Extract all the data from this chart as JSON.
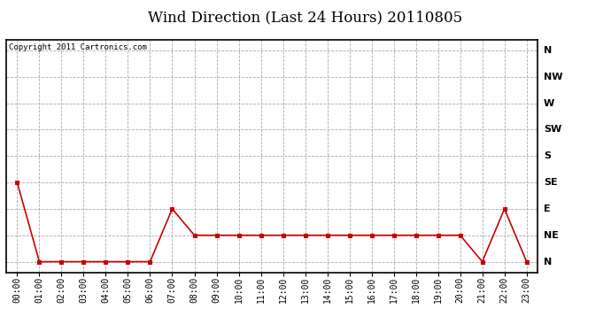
{
  "title": "Wind Direction (Last 24 Hours) 20110805",
  "copyright_text": "Copyright 2011 Cartronics.com",
  "x_labels": [
    "00:00",
    "01:00",
    "02:00",
    "03:00",
    "04:00",
    "05:00",
    "06:00",
    "07:00",
    "08:00",
    "09:00",
    "10:00",
    "11:00",
    "12:00",
    "13:00",
    "14:00",
    "15:00",
    "16:00",
    "17:00",
    "18:00",
    "19:00",
    "20:00",
    "21:00",
    "22:00",
    "23:00"
  ],
  "y_values": [
    3,
    0,
    0,
    0,
    0,
    0,
    0,
    2,
    1,
    1,
    1,
    1,
    1,
    1,
    1,
    1,
    1,
    1,
    1,
    1,
    1,
    0,
    2,
    0
  ],
  "y_ticks": [
    0,
    1,
    2,
    3,
    4,
    5,
    6,
    7,
    8
  ],
  "y_tick_labels": [
    "N",
    "NE",
    "E",
    "SE",
    "S",
    "SW",
    "W",
    "NW",
    "N"
  ],
  "line_color": "#cc0000",
  "marker": "s",
  "marker_size": 3,
  "bg_color": "#ffffff",
  "plot_bg_color": "#ffffff",
  "grid_color": "#aaaaaa",
  "grid_style": "--",
  "title_fontsize": 12,
  "ylabel_fontsize": 8,
  "xlabel_fontsize": 7,
  "copyright_fontsize": 6.5,
  "ylim": [
    -0.4,
    8.4
  ],
  "xlim": [
    -0.5,
    23.5
  ],
  "outer_border_color": "#000000"
}
